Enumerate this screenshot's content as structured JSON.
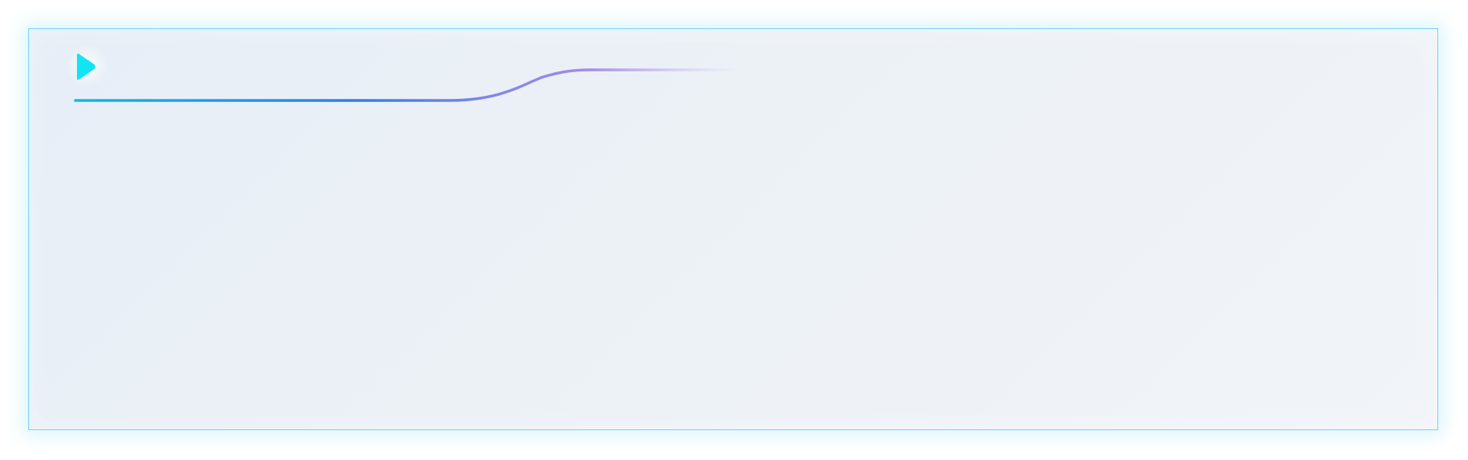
{
  "panel": {
    "border_color": "#6fd6f3",
    "background_color": "#eaf0f6"
  },
  "play_button": {
    "icon": "play-icon",
    "color": "#12e4f2"
  },
  "step_line": {
    "start_color": "#12b6ea",
    "mid_color": "#2d7fe2",
    "end_color": "#a78be8"
  }
}
